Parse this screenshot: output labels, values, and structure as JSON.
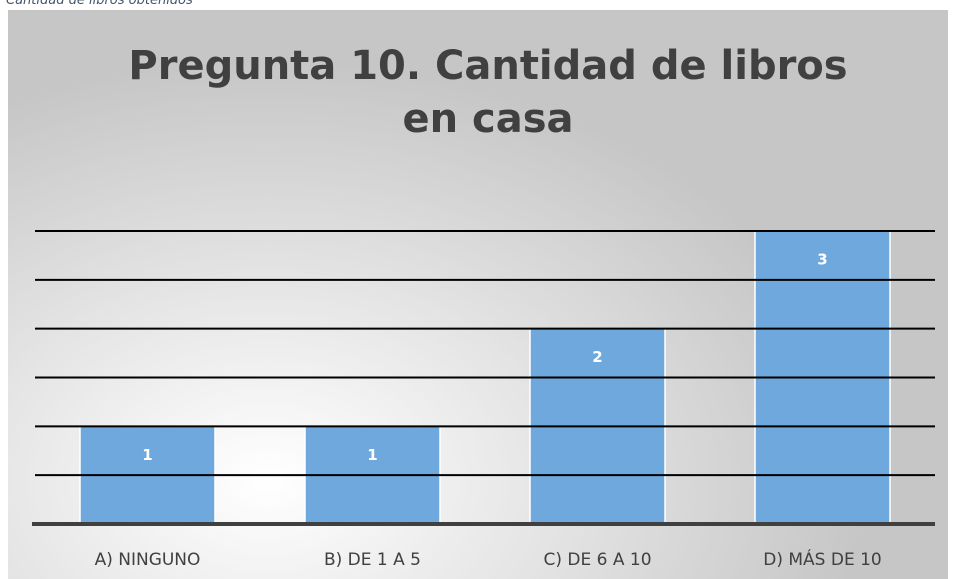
{
  "caption": "Cantidad de libros obtenidos",
  "chart_data": {
    "type": "bar",
    "title": "Pregunta 10. Cantidad de libros en casa",
    "categories": [
      "A) NINGUNO",
      "B) DE 1 A 5",
      "C) DE 6 A 10",
      "D) MÁS DE 10"
    ],
    "values": [
      1,
      1,
      2,
      3
    ],
    "color": "#6fa8dc",
    "ylim": [
      0,
      3
    ],
    "yticks": [
      0,
      0.5,
      1,
      1.5,
      2,
      2.5,
      3
    ],
    "grid": true
  }
}
